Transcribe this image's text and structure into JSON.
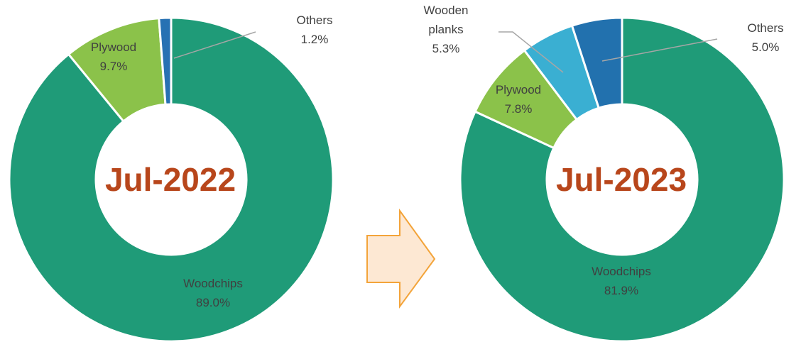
{
  "chart_data": [
    {
      "type": "donut",
      "title": "Jul-2022",
      "categories": [
        "Woodchips",
        "Plywood",
        "Others"
      ],
      "values": [
        89.0,
        9.7,
        1.2
      ],
      "value_labels": [
        "89.0%",
        "9.7%",
        "1.2%"
      ],
      "colors": [
        "#1f9b78",
        "#8bc24a",
        "#2771b3"
      ]
    },
    {
      "type": "donut",
      "title": "Jul-2023",
      "categories": [
        "Woodchips",
        "Plywood",
        "Wooden planks",
        "Others"
      ],
      "values": [
        81.9,
        7.8,
        5.3,
        5.0
      ],
      "value_labels": [
        "81.9%",
        "7.8%",
        "5.3%",
        "5.0%"
      ],
      "colors": [
        "#1f9b78",
        "#8bc24a",
        "#3aafd2",
        "#2271ae"
      ]
    }
  ]
}
